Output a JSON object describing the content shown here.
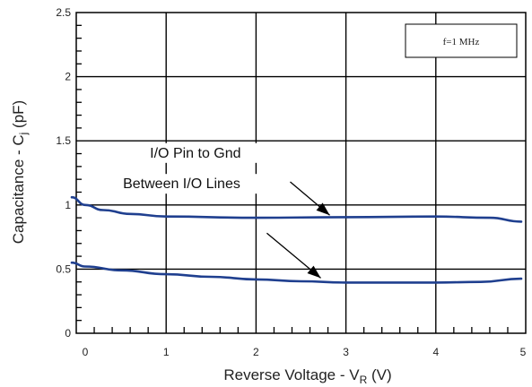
{
  "chart_data": {
    "type": "line",
    "xlabel": {
      "prefix": "Reverse Voltage - V",
      "sub": "R",
      "suffix": " (V)"
    },
    "ylabel": {
      "prefix": "Capacitance - C",
      "sub": "j",
      "suffix": " (pF)"
    },
    "xlim": [
      0,
      5
    ],
    "ylim": [
      0,
      2.5
    ],
    "x_ticks": [
      {
        "value": 0,
        "label": "0"
      },
      {
        "value": 1,
        "label": "1"
      },
      {
        "value": 2,
        "label": "2"
      },
      {
        "value": 3,
        "label": "3"
      },
      {
        "value": 4,
        "label": "4"
      },
      {
        "value": 5,
        "label": "5"
      }
    ],
    "y_ticks": [
      {
        "value": 0,
        "label": "0"
      },
      {
        "value": 0.5,
        "label": "0.5"
      },
      {
        "value": 1,
        "label": "1"
      },
      {
        "value": 1.5,
        "label": "1.5"
      },
      {
        "value": 2,
        "label": "2"
      },
      {
        "value": 2.5,
        "label": "2.5"
      }
    ],
    "grid": true,
    "condition_box": "f=1 MHz",
    "series_color": "#1f3f8f",
    "series": [
      {
        "name": "I/O Pin to Gnd",
        "x": [
          -0.05,
          0.1,
          0.3,
          0.6,
          1.0,
          2.0,
          3.0,
          4.0,
          4.6,
          4.95
        ],
        "values": [
          1.06,
          1.0,
          0.96,
          0.93,
          0.91,
          0.9,
          0.905,
          0.91,
          0.9,
          0.87
        ]
      },
      {
        "name": "Between I/O Lines",
        "x": [
          -0.05,
          0.1,
          0.5,
          1.0,
          1.5,
          2.0,
          2.5,
          3.0,
          4.0,
          4.5,
          4.95
        ],
        "values": [
          0.55,
          0.52,
          0.49,
          0.46,
          0.44,
          0.42,
          0.405,
          0.395,
          0.395,
          0.4,
          0.425
        ]
      }
    ],
    "annotations": [
      {
        "text": "I/O Pin to Gnd",
        "series": 0,
        "label_at": [
          0.82,
          1.37
        ],
        "arrow_from": [
          2.38,
          1.18
        ],
        "arrow_to": [
          2.82,
          0.92
        ]
      },
      {
        "text": "Between I/O Lines",
        "series": 1,
        "label_at": [
          0.52,
          1.13
        ],
        "arrow_from": [
          2.12,
          0.78
        ],
        "arrow_to": [
          2.72,
          0.43
        ]
      }
    ]
  }
}
